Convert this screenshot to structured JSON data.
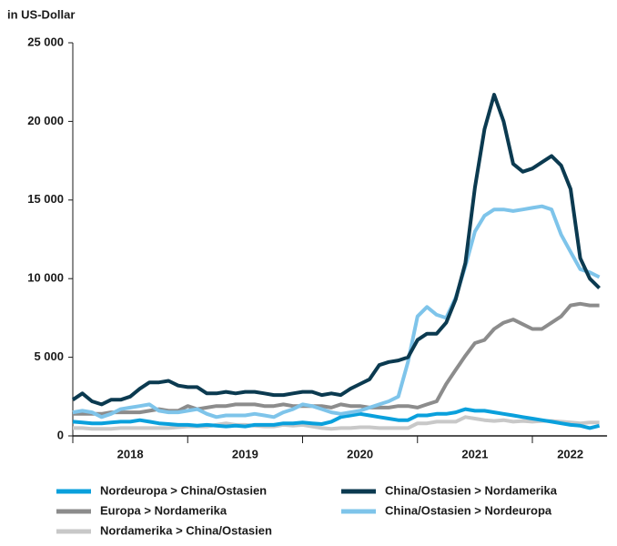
{
  "chart_data": {
    "type": "line",
    "ylabel": "in US-Dollar",
    "xlim": [
      2018,
      2022.65
    ],
    "xticks": [
      2018,
      2019,
      2020,
      2021,
      2022
    ],
    "year_labels": [
      {
        "value": 2018.5,
        "label": "2018"
      },
      {
        "value": 2019.5,
        "label": "2019"
      },
      {
        "value": 2020.5,
        "label": "2020"
      },
      {
        "value": 2021.5,
        "label": "2021"
      },
      {
        "value": 2022.33,
        "label": "2022"
      }
    ],
    "ylim": [
      0,
      25000
    ],
    "yticks": [
      0,
      {
        "value": 5000,
        "label": "5 000"
      },
      {
        "value": 10000,
        "label": "10 000"
      },
      {
        "value": 15000,
        "label": "15 000"
      },
      {
        "value": 20000,
        "label": "20 000"
      },
      {
        "value": 25000,
        "label": "25 000"
      }
    ],
    "grid": false,
    "x": [
      2018,
      2018.083,
      2018.167,
      2018.25,
      2018.333,
      2018.417,
      2018.5,
      2018.583,
      2018.667,
      2018.75,
      2018.833,
      2018.917,
      2019,
      2019.083,
      2019.167,
      2019.25,
      2019.333,
      2019.417,
      2019.5,
      2019.583,
      2019.667,
      2019.75,
      2019.833,
      2019.917,
      2020,
      2020.083,
      2020.167,
      2020.25,
      2020.333,
      2020.417,
      2020.5,
      2020.583,
      2020.667,
      2020.75,
      2020.833,
      2020.917,
      2021,
      2021.083,
      2021.167,
      2021.25,
      2021.333,
      2021.417,
      2021.5,
      2021.583,
      2021.667,
      2021.75,
      2021.833,
      2021.917,
      2022,
      2022.083,
      2022.167,
      2022.25,
      2022.333,
      2022.417,
      2022.5,
      2022.583
    ],
    "series": [
      {
        "name": "Nordeuropa > China/Ostasien",
        "color": "#0aa0dc",
        "values": [
          900,
          850,
          800,
          800,
          850,
          900,
          900,
          1000,
          900,
          800,
          750,
          700,
          700,
          650,
          700,
          650,
          600,
          650,
          600,
          700,
          700,
          700,
          800,
          800,
          850,
          800,
          750,
          900,
          1200,
          1300,
          1400,
          1300,
          1200,
          1100,
          1000,
          1000,
          1300,
          1300,
          1400,
          1400,
          1500,
          1700,
          1600,
          1600,
          1500,
          1400,
          1300,
          1200,
          1100,
          1000,
          900,
          800,
          700,
          650,
          500,
          650
        ]
      },
      {
        "name": "China/Ostasien > Nordamerika",
        "color": "#0b3a50",
        "values": [
          2300,
          2700,
          2200,
          2000,
          2300,
          2300,
          2500,
          3000,
          3400,
          3400,
          3500,
          3200,
          3100,
          3100,
          2700,
          2700,
          2800,
          2700,
          2800,
          2800,
          2700,
          2600,
          2600,
          2700,
          2800,
          2800,
          2600,
          2700,
          2600,
          3000,
          3300,
          3600,
          4500,
          4700,
          4800,
          5000,
          6100,
          6500,
          6500,
          7200,
          8700,
          11000,
          15800,
          19500,
          21700,
          20000,
          17300,
          16800,
          17000,
          17400,
          17800,
          17200,
          15700,
          11300,
          10000,
          9400
        ]
      },
      {
        "name": "Europa > Nordamerika",
        "color": "#8c8c8c",
        "values": [
          1400,
          1400,
          1400,
          1400,
          1500,
          1500,
          1500,
          1500,
          1600,
          1700,
          1600,
          1600,
          1900,
          1700,
          1800,
          1900,
          1900,
          2000,
          2000,
          2000,
          1900,
          1900,
          2000,
          1900,
          1900,
          1900,
          1900,
          1800,
          2000,
          1900,
          1900,
          1800,
          1800,
          1800,
          1900,
          1900,
          1800,
          2000,
          2200,
          3300,
          4200,
          5100,
          5900,
          6100,
          6800,
          7200,
          7400,
          7100,
          6800,
          6800,
          7200,
          7600,
          8300,
          8400,
          8300,
          8300
        ]
      },
      {
        "name": "China/Ostasien > Nordeuropa",
        "color": "#7ec4ea",
        "values": [
          1500,
          1600,
          1500,
          1200,
          1400,
          1700,
          1800,
          1900,
          2000,
          1600,
          1500,
          1500,
          1600,
          1700,
          1400,
          1200,
          1300,
          1300,
          1300,
          1400,
          1300,
          1200,
          1500,
          1700,
          2000,
          1900,
          1700,
          1500,
          1400,
          1500,
          1600,
          1800,
          2000,
          2200,
          2500,
          4700,
          7600,
          8200,
          7700,
          7500,
          8800,
          10800,
          13000,
          14000,
          14400,
          14400,
          14300,
          14400,
          14500,
          14600,
          14400,
          12800,
          11700,
          10600,
          10400,
          10100
        ]
      },
      {
        "name": "Nordamerika > China/Ostasien",
        "color": "#c8c8c8",
        "values": [
          500,
          500,
          450,
          450,
          450,
          500,
          500,
          500,
          500,
          500,
          500,
          550,
          600,
          600,
          600,
          700,
          800,
          700,
          700,
          650,
          600,
          600,
          700,
          650,
          700,
          600,
          500,
          450,
          500,
          500,
          550,
          550,
          500,
          500,
          500,
          500,
          800,
          800,
          900,
          900,
          900,
          1200,
          1100,
          1000,
          950,
          1000,
          900,
          950,
          900,
          950,
          950,
          900,
          850,
          800,
          850,
          850
        ]
      }
    ]
  }
}
